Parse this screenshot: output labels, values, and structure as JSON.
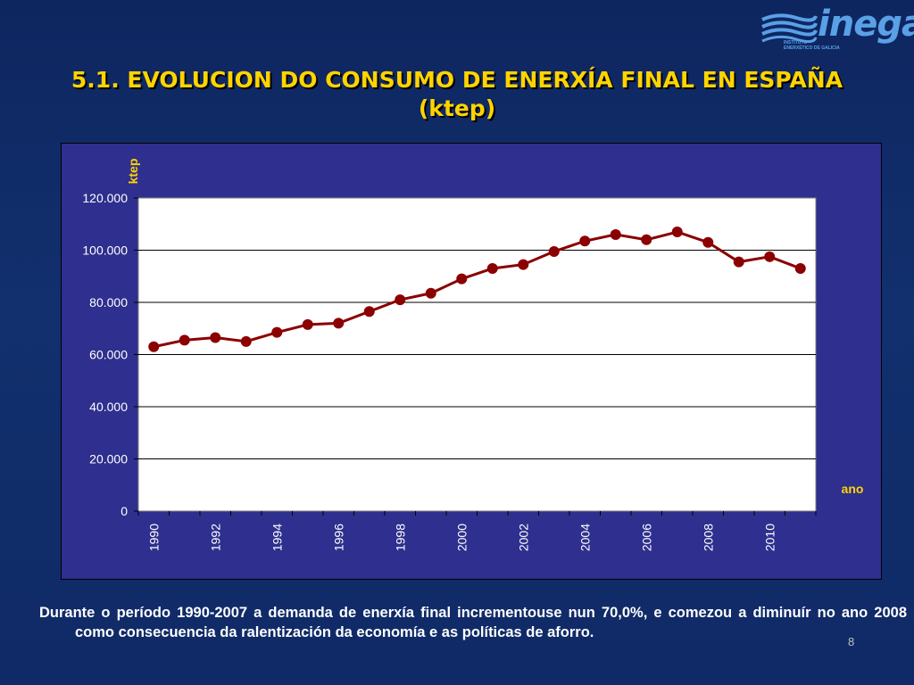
{
  "logo": {
    "word": "inega",
    "subtitle": "INSTITUTO\nENERXÉTICO DE GALICIA"
  },
  "slide": {
    "title_line1": "5.1. EVOLUCION DO CONSUMO DE ENERXÍA FINAL EN ESPAÑA",
    "title_line2": "(ktep)",
    "caption": "Durante o período 1990-2007 a demanda de enerxía final incrementouse nun 70,0%, e comezou a diminuír no ano 2008 como consecuencia da ralentización da economía e as políticas de aforro.",
    "page_number": "8"
  },
  "colors": {
    "title": "#ffd400",
    "plot_area": "#ffffff",
    "chart_background": "#2e2f8e",
    "series_line": "#8b0000",
    "axis_text": "#ffffff",
    "axis_title": "#ffd400"
  },
  "chart_data": {
    "type": "line",
    "ylabel": "ktep",
    "xlabel": "ano",
    "ylim": [
      0,
      120000
    ],
    "ytick_values": [
      0,
      20000,
      40000,
      60000,
      80000,
      100000,
      120000
    ],
    "ytick_labels": [
      "0",
      "20.000",
      "40.000",
      "60.000",
      "80.000",
      "100.000",
      "120.000"
    ],
    "xtick_labels": [
      "1990",
      "1992",
      "1994",
      "1996",
      "1998",
      "2000",
      "2002",
      "2004",
      "2006",
      "2008",
      "2010"
    ],
    "grid": "horizontal",
    "legend": "none",
    "x": [
      1990,
      1991,
      1992,
      1993,
      1994,
      1995,
      1996,
      1997,
      1998,
      1999,
      2000,
      2001,
      2002,
      2003,
      2004,
      2005,
      2006,
      2007,
      2008,
      2009,
      2010,
      2011
    ],
    "series": [
      {
        "values": [
          63000,
          65500,
          66500,
          65000,
          68500,
          71500,
          72000,
          76500,
          81000,
          83500,
          89000,
          93000,
          94500,
          99500,
          103500,
          106000,
          104000,
          107000,
          103000,
          95500,
          97500,
          93000
        ]
      }
    ]
  }
}
